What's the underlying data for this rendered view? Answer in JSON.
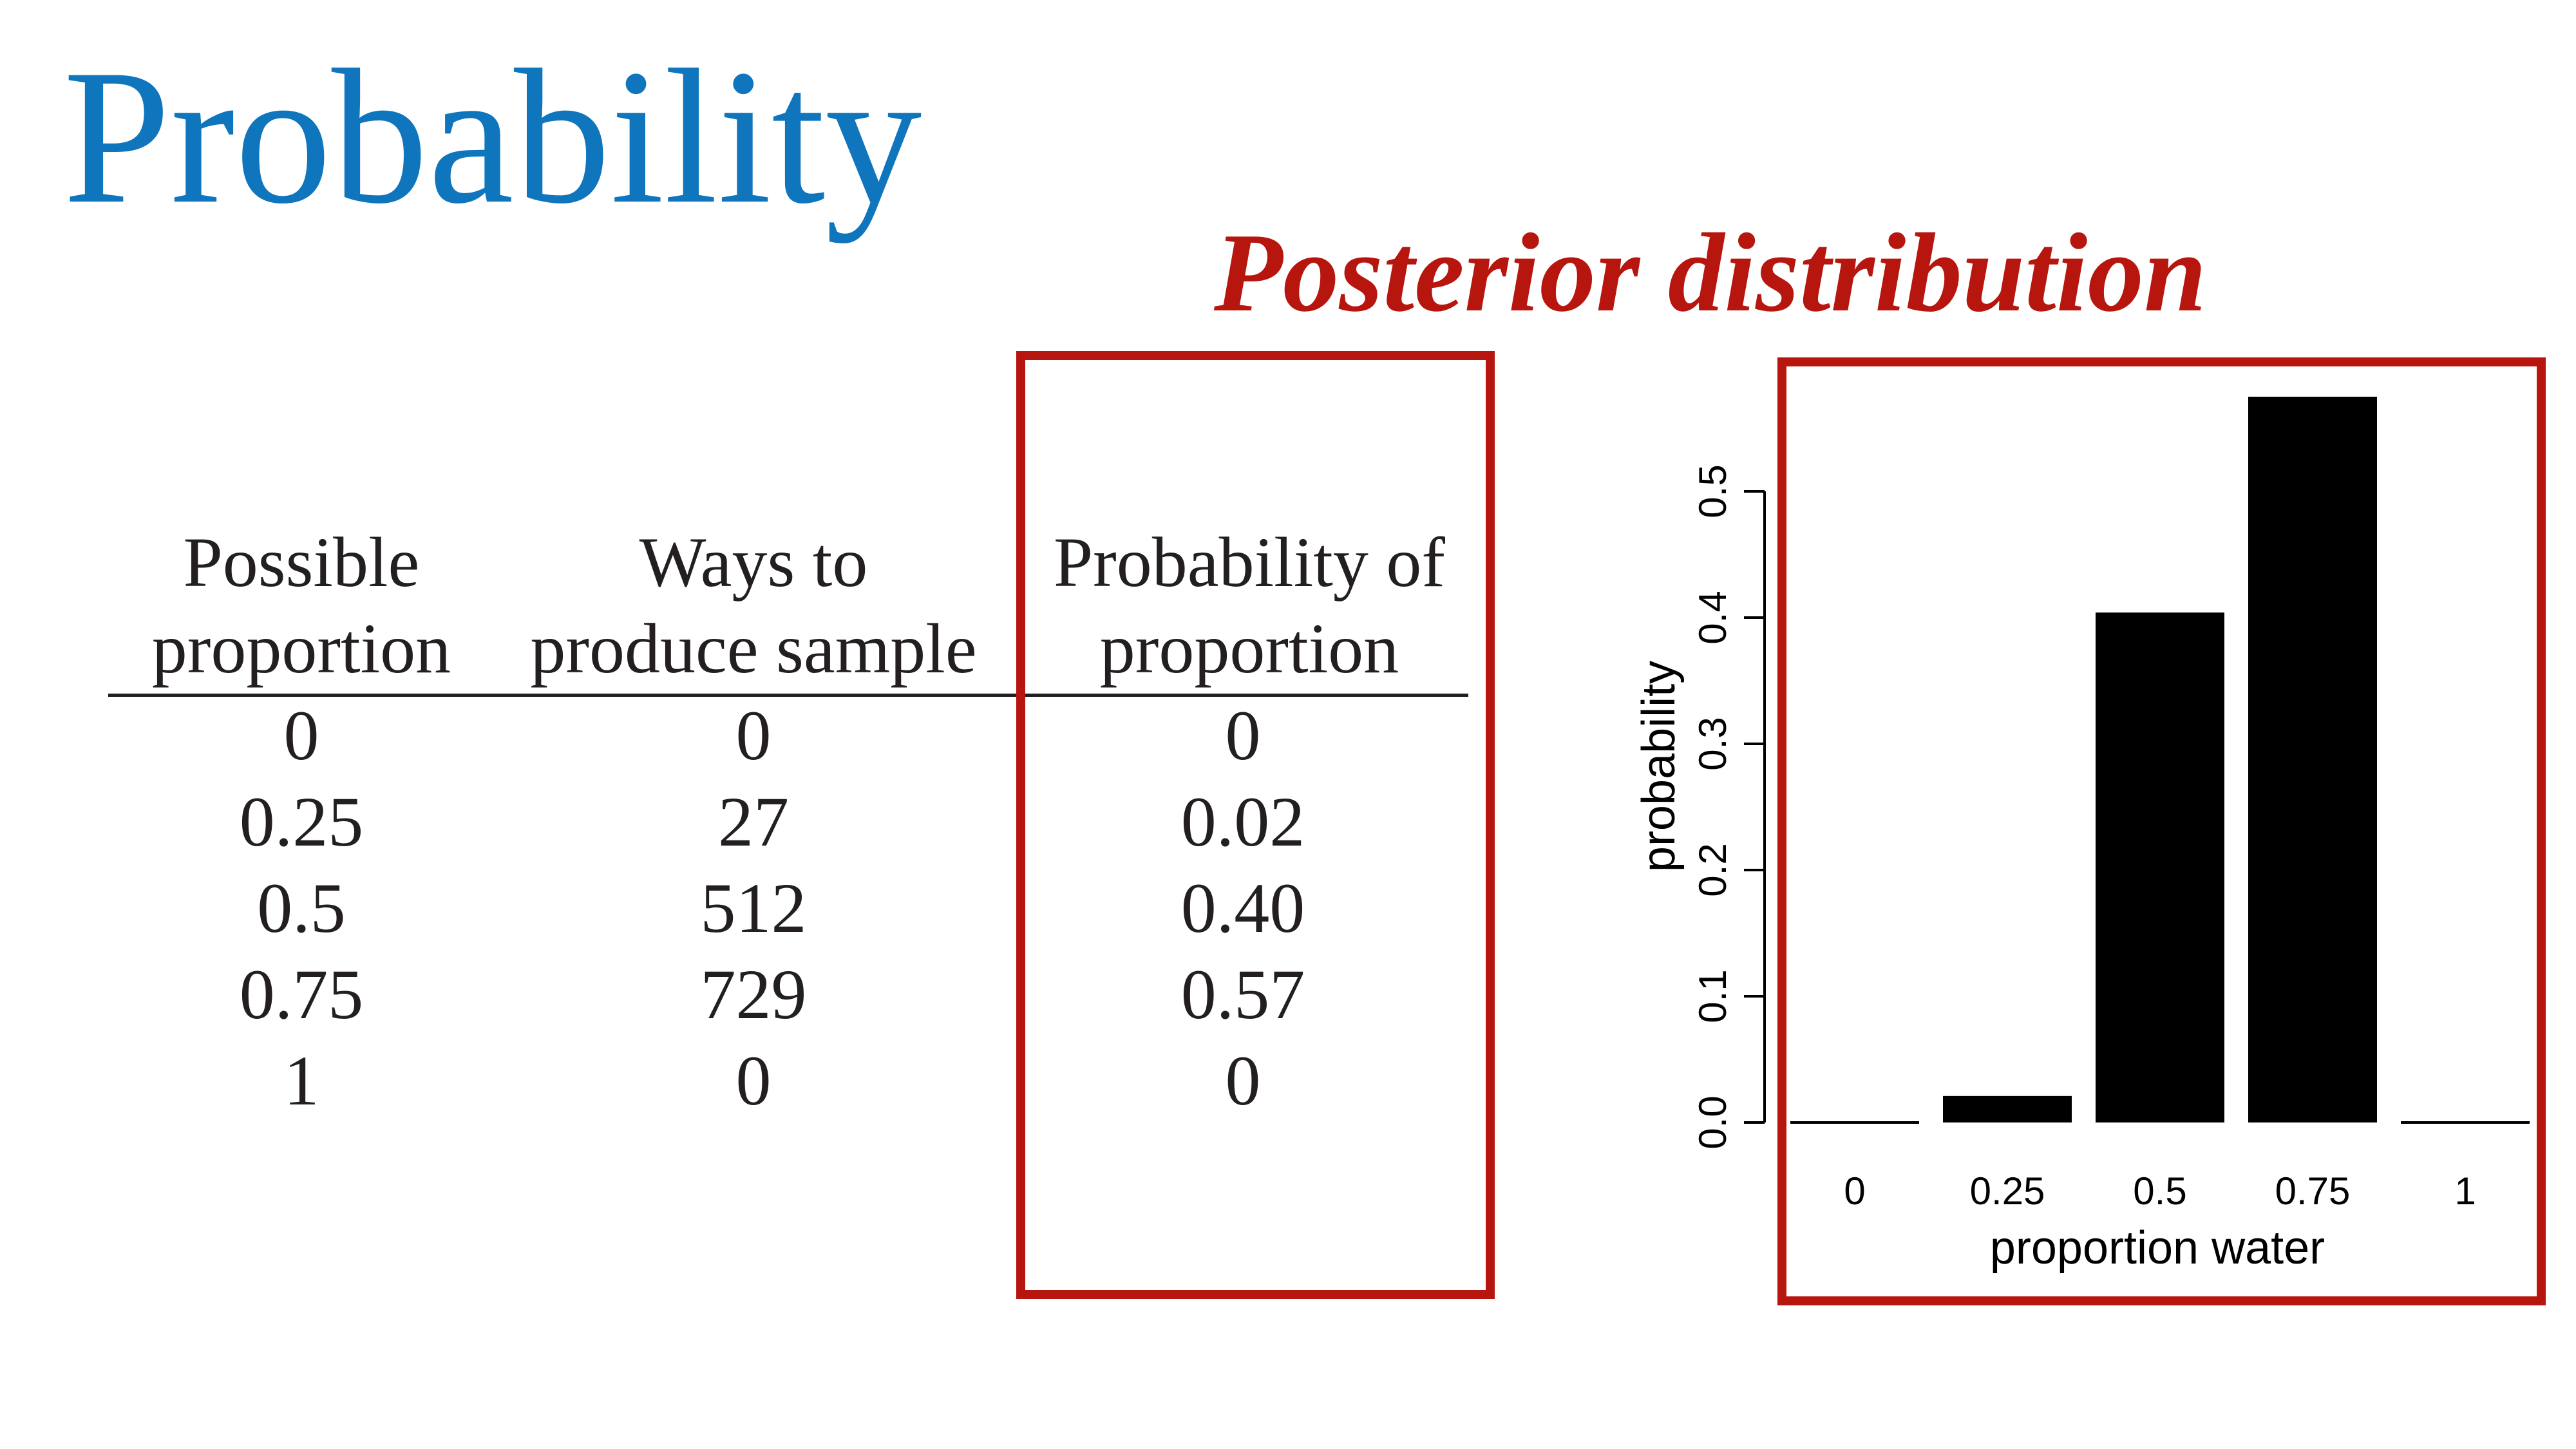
{
  "title": "Probability",
  "subtitle": "Posterior distribution",
  "table": {
    "headers": [
      [
        "Possible",
        "proportion"
      ],
      [
        "Ways to",
        "produce sample"
      ],
      [
        "Probability of",
        "proportion"
      ]
    ],
    "rows": [
      [
        "0",
        "0",
        "0"
      ],
      [
        "0.25",
        "27",
        "0.02"
      ],
      [
        "0.5",
        "512",
        "0.40"
      ],
      [
        "0.75",
        "729",
        "0.57"
      ],
      [
        "1",
        "0",
        "0"
      ]
    ]
  },
  "colors": {
    "title": "#0f75bc",
    "highlight": "#b7160f",
    "bars": "#000000"
  },
  "chart_data": {
    "type": "bar",
    "categories": [
      "0",
      "0.25",
      "0.5",
      "0.75",
      "1"
    ],
    "values": [
      0,
      0.021,
      0.404,
      0.575,
      0
    ],
    "xlabel": "proportion water",
    "ylabel": "probability",
    "yticks": [
      "0.0",
      "0.1",
      "0.2",
      "0.3",
      "0.4",
      "0.5"
    ],
    "ylim": [
      0,
      0.58
    ],
    "grid": false
  }
}
